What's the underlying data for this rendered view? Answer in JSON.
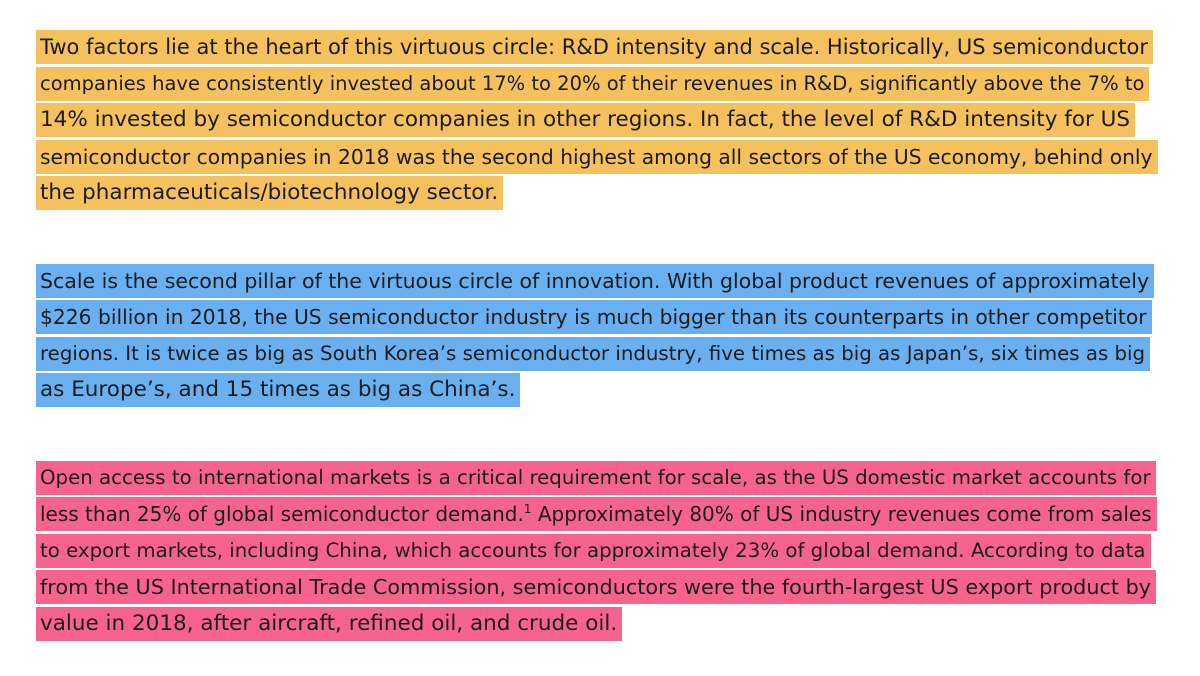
{
  "colors": {
    "highlight_yellow": "#f5c15f",
    "highlight_blue": "#6aaff0",
    "highlight_pink": "#f6638d",
    "text": "#1c1c1c"
  },
  "paragraph1": {
    "lines": [
      "Two factors lie at the heart of this virtuous circle: R&D intensity and scale. Historically, US semiconductor",
      "companies have consistently invested about 17% to 20% of their revenues in R&D, significantly above the 7% to",
      "14% invested by semiconductor companies in other regions. In fact, the level of R&D intensity for US",
      "semiconductor companies in 2018 was the second highest among all sectors of the US economy, behind only",
      "the pharmaceuticals/biotechnology sector."
    ]
  },
  "paragraph2": {
    "lines": [
      "Scale is the second pillar of the virtuous circle of innovation. With global product revenues of approximately",
      "$226 billion in 2018, the US semiconductor industry is much bigger than its counterparts in other competitor",
      "regions. It is twice as big as South Korea’s semiconductor industry, five times as big as Japan’s, six times as big",
      "as Europe’s, and 15 times as big as China’s."
    ]
  },
  "paragraph3": {
    "lines": [
      "Open access to international markets is a critical requirement for scale, as the US domestic market accounts for",
      "less than 25% of global semiconductor demand.",
      "Approximately 80% of US industry revenues come from sales",
      "to export markets, including China, which accounts for approximately 23% of global demand. According to data",
      "from the US International Trade Commission, semiconductors were the fourth-largest US export product by",
      "value in 2018, after aircraft, refined oil, and crude oil."
    ],
    "footnote_marker": "1"
  }
}
